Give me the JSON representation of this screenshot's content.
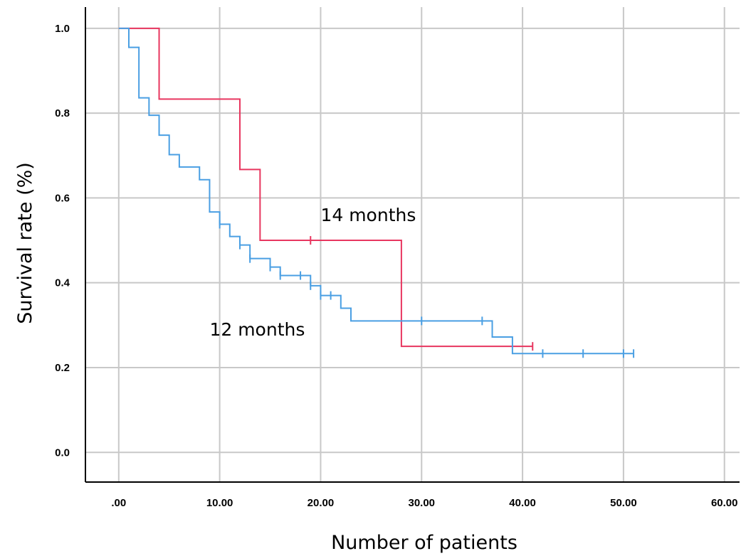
{
  "chart_data": {
    "type": "line",
    "title": "",
    "xlabel": "Number of patients",
    "ylabel": "Survival rate (%)",
    "xlim": [
      -3.3,
      61.5
    ],
    "ylim": [
      -0.07,
      1.05
    ],
    "grid": true,
    "x_ticks": [
      {
        "value": 0,
        "label": ".00"
      },
      {
        "value": 10,
        "label": "10.00"
      },
      {
        "value": 20,
        "label": "20.00"
      },
      {
        "value": 30,
        "label": "30.00"
      },
      {
        "value": 40,
        "label": "40.00"
      },
      {
        "value": 50,
        "label": "50.00"
      },
      {
        "value": 60,
        "label": "60.00"
      }
    ],
    "y_ticks": [
      {
        "value": 0.0,
        "label": "0.0"
      },
      {
        "value": 0.2,
        "label": "0.2"
      },
      {
        "value": 0.4,
        "label": "0.4"
      },
      {
        "value": 0.6,
        "label": "0.6"
      },
      {
        "value": 0.8,
        "label": "0.8"
      },
      {
        "value": 1.0,
        "label": "1.0"
      }
    ],
    "series": [
      {
        "color": "#e8365f",
        "step": true,
        "x": [
          0,
          4,
          12,
          14,
          28,
          41
        ],
        "y": [
          1.0,
          0.833,
          0.667,
          0.5,
          0.25,
          0.25
        ],
        "censored": [
          {
            "x": 19,
            "y": 0.5
          },
          {
            "x": 41,
            "y": 0.25
          }
        ]
      },
      {
        "color": "#4a9fe3",
        "step": true,
        "x": [
          0,
          1,
          2,
          3,
          4,
          5,
          6,
          8,
          9,
          10,
          11,
          12,
          13,
          15,
          16,
          19,
          20,
          22,
          23,
          37,
          39,
          51
        ],
        "y": [
          1.0,
          0.955,
          0.836,
          0.795,
          0.748,
          0.702,
          0.673,
          0.643,
          0.567,
          0.538,
          0.509,
          0.489,
          0.457,
          0.437,
          0.417,
          0.393,
          0.37,
          0.34,
          0.31,
          0.272,
          0.233,
          0.233
        ],
        "censored": [
          {
            "x": 10,
            "y": 0.538
          },
          {
            "x": 12,
            "y": 0.489
          },
          {
            "x": 13,
            "y": 0.457
          },
          {
            "x": 15,
            "y": 0.437
          },
          {
            "x": 16,
            "y": 0.417
          },
          {
            "x": 18,
            "y": 0.417
          },
          {
            "x": 19,
            "y": 0.393
          },
          {
            "x": 20,
            "y": 0.37
          },
          {
            "x": 21,
            "y": 0.37
          },
          {
            "x": 30,
            "y": 0.31
          },
          {
            "x": 36,
            "y": 0.31
          },
          {
            "x": 42,
            "y": 0.233
          },
          {
            "x": 46,
            "y": 0.233
          },
          {
            "x": 50,
            "y": 0.233
          },
          {
            "x": 51,
            "y": 0.233
          }
        ]
      }
    ],
    "annotations": [
      {
        "text": "14 months",
        "x": 20.0,
        "y": 0.545
      },
      {
        "text": "12 months",
        "x": 9.0,
        "y": 0.275
      }
    ]
  }
}
